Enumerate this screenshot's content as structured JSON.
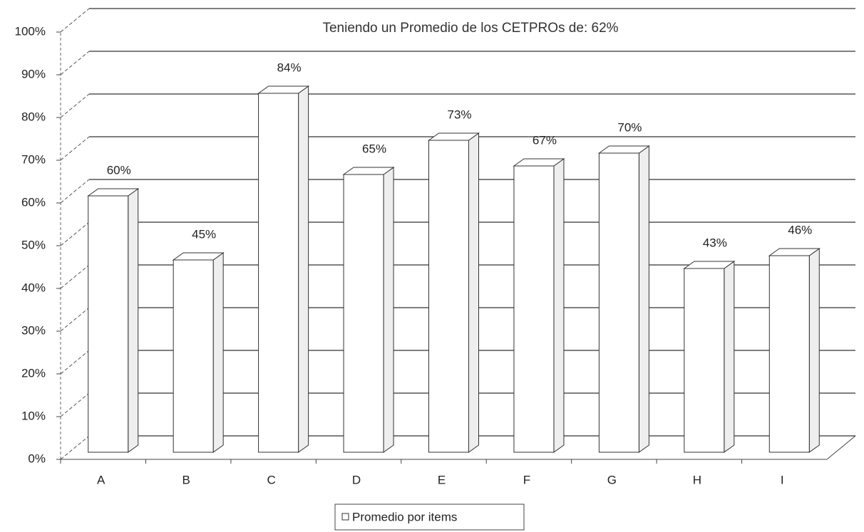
{
  "chart_data": {
    "type": "bar3d",
    "title": "Teniendo un Promedio de los CETPROs de: 62%",
    "categories": [
      "A",
      "B",
      "C",
      "D",
      "E",
      "F",
      "G",
      "H",
      "I"
    ],
    "series": [
      {
        "name": "Promedio por items",
        "color": "#ffffff",
        "values": [
          60,
          45,
          84,
          65,
          73,
          67,
          70,
          43,
          46
        ],
        "value_labels": [
          "60%",
          "45%",
          "84%",
          "65%",
          "73%",
          "67%",
          "70%",
          "43%",
          "46%"
        ]
      }
    ],
    "ylim": [
      0,
      100
    ],
    "yticks": [
      {
        "value": 0,
        "label": "0%"
      },
      {
        "value": 10,
        "label": "10%"
      },
      {
        "value": 20,
        "label": "20%"
      },
      {
        "value": 30,
        "label": "30%"
      },
      {
        "value": 40,
        "label": "40%"
      },
      {
        "value": 50,
        "label": "50%"
      },
      {
        "value": 60,
        "label": "60%"
      },
      {
        "value": 70,
        "label": "70%"
      },
      {
        "value": 80,
        "label": "80%"
      },
      {
        "value": 90,
        "label": "90%"
      },
      {
        "value": 100,
        "label": "100%"
      }
    ],
    "grid": true,
    "legend": "bottom"
  }
}
